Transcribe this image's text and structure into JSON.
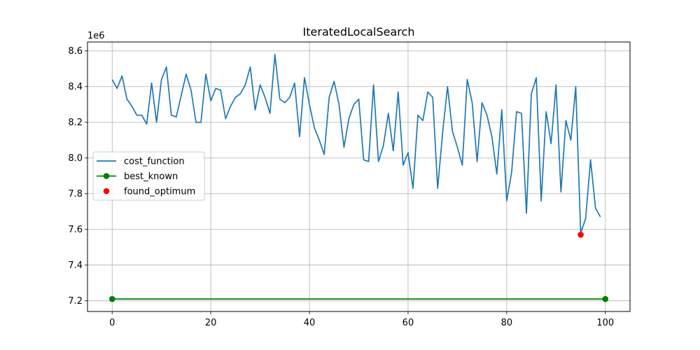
{
  "chart_data": {
    "type": "line",
    "title": "IteratedLocalSearch",
    "xlabel": "",
    "ylabel": "",
    "y_offset_label": "1e6",
    "xlim": [
      -5,
      105
    ],
    "ylim": [
      7.14,
      8.65
    ],
    "x_ticks": [
      0,
      20,
      40,
      60,
      80,
      100
    ],
    "x_tick_labels": [
      "0",
      "20",
      "40",
      "60",
      "80",
      "100"
    ],
    "y_ticks": [
      7.2,
      7.4,
      7.6,
      7.8,
      8.0,
      8.2,
      8.4,
      8.6
    ],
    "y_tick_labels": [
      "7.2",
      "7.4",
      "7.6",
      "7.8",
      "8.0",
      "8.2",
      "8.4",
      "8.6"
    ],
    "grid": true,
    "legend_position": "center-left",
    "series": [
      {
        "name": "cost_function",
        "style": "line",
        "color": "#1f77b4",
        "x": [
          0,
          1,
          2,
          3,
          4,
          5,
          6,
          7,
          8,
          9,
          10,
          11,
          12,
          13,
          14,
          15,
          16,
          17,
          18,
          19,
          20,
          21,
          22,
          23,
          24,
          25,
          26,
          27,
          28,
          29,
          30,
          31,
          32,
          33,
          34,
          35,
          36,
          37,
          38,
          39,
          40,
          41,
          42,
          43,
          44,
          45,
          46,
          47,
          48,
          49,
          50,
          51,
          52,
          53,
          54,
          55,
          56,
          57,
          58,
          59,
          60,
          61,
          62,
          63,
          64,
          65,
          66,
          67,
          68,
          69,
          70,
          71,
          72,
          73,
          74,
          75,
          76,
          77,
          78,
          79,
          80,
          81,
          82,
          83,
          84,
          85,
          86,
          87,
          88,
          89,
          90,
          91,
          92,
          93,
          94,
          95,
          96,
          97,
          98,
          99
        ],
        "y": [
          8.44,
          8.39,
          8.46,
          8.33,
          8.29,
          8.24,
          8.24,
          8.19,
          8.42,
          8.2,
          8.44,
          8.51,
          8.24,
          8.23,
          8.35,
          8.47,
          8.38,
          8.2,
          8.2,
          8.47,
          8.32,
          8.39,
          8.38,
          8.22,
          8.29,
          8.34,
          8.36,
          8.41,
          8.51,
          8.27,
          8.41,
          8.34,
          8.25,
          8.58,
          8.33,
          8.31,
          8.34,
          8.42,
          8.12,
          8.45,
          8.3,
          8.17,
          8.1,
          8.02,
          8.34,
          8.43,
          8.3,
          8.06,
          8.22,
          8.3,
          8.33,
          7.99,
          7.98,
          8.41,
          7.98,
          8.07,
          8.25,
          8.04,
          8.37,
          7.96,
          8.03,
          7.83,
          8.24,
          8.21,
          8.37,
          8.34,
          7.83,
          8.14,
          8.4,
          8.15,
          8.06,
          7.96,
          8.44,
          8.31,
          7.98,
          8.31,
          8.24,
          8.12,
          7.91,
          8.27,
          7.76,
          7.92,
          8.26,
          8.25,
          7.69,
          8.36,
          8.45,
          7.76,
          8.26,
          8.08,
          8.41,
          7.81,
          8.21,
          8.1,
          8.4,
          7.58,
          7.66,
          7.99,
          7.72,
          7.67
        ]
      },
      {
        "name": "best_known",
        "style": "line-marker",
        "color": "#008000",
        "x": [
          0,
          100
        ],
        "y": [
          7.21,
          7.21
        ]
      },
      {
        "name": "found_optimum",
        "style": "marker",
        "color": "#ff0000",
        "x": [
          95
        ],
        "y": [
          7.57
        ]
      }
    ]
  }
}
